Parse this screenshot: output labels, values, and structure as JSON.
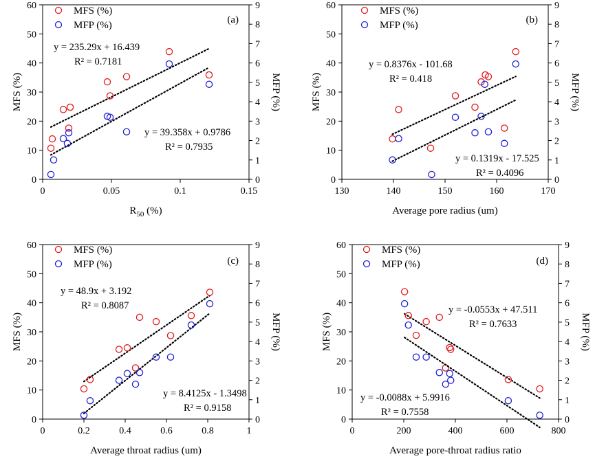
{
  "colors": {
    "mfs": "#e31a1c",
    "mfp": "#1f1fd6",
    "axis": "#000000",
    "trend": "#000000"
  },
  "chart_data": [
    {
      "type": "scatter",
      "tag": "(a)",
      "xlabel_main": "R",
      "xlabel_sub": "50",
      "xlabel_suffix": " (%)",
      "ylabel_left": "MFS (%)",
      "ylabel_right": "MFP (%)",
      "xlim": [
        0,
        0.15
      ],
      "xticks": [
        0,
        0.05,
        0.1,
        0.15
      ],
      "xtick_labels": [
        "0",
        "0.05",
        "0.1",
        "0.15"
      ],
      "ylim_left": [
        0,
        60
      ],
      "yticks_left": [
        0,
        10,
        20,
        30,
        40,
        50,
        60
      ],
      "ylim_right": [
        0,
        9
      ],
      "yticks_right": [
        0,
        1,
        2,
        3,
        4,
        5,
        6,
        7,
        8,
        9
      ],
      "legend": [
        "MFS (%)",
        "MFP (%)"
      ],
      "series": [
        {
          "name": "MFS (%)",
          "axis": "left",
          "x": [
            0.006,
            0.007,
            0.015,
            0.019,
            0.02,
            0.047,
            0.049,
            0.061,
            0.092,
            0.121
          ],
          "y": [
            10.7,
            13.9,
            24.0,
            17.6,
            24.8,
            33.5,
            28.7,
            35.3,
            43.9,
            35.9
          ],
          "equation": "y = 235.29x  + 16.439",
          "r2": "R² = 0.7181",
          "trend_x": [
            0.006,
            0.121
          ]
        },
        {
          "name": "MFP (%)",
          "axis": "right",
          "x": [
            0.006,
            0.008,
            0.015,
            0.018,
            0.019,
            0.047,
            0.049,
            0.061,
            0.092,
            0.121
          ],
          "y": [
            0.25,
            1.0,
            2.1,
            1.85,
            2.4,
            3.25,
            3.2,
            2.45,
            5.95,
            4.9
          ],
          "equation": "y = 39.358x  + 0.9786",
          "r2": "R² = 0.7935",
          "trend_x": [
            0.006,
            0.121
          ]
        }
      ]
    },
    {
      "type": "scatter",
      "tag": "(b)",
      "xlabel_main": "Average pore radius (um)",
      "xlabel_sub": "",
      "xlabel_suffix": "",
      "ylabel_left": "MFS (%)",
      "ylabel_right": "MFP (%)",
      "xlim": [
        130,
        170
      ],
      "xticks": [
        130,
        140,
        150,
        160,
        170
      ],
      "xtick_labels": [
        "130",
        "140",
        "150",
        "160",
        "170"
      ],
      "ylim_left": [
        0,
        60
      ],
      "yticks_left": [
        0,
        10,
        20,
        30,
        40,
        50,
        60
      ],
      "ylim_right": [
        0,
        9
      ],
      "yticks_right": [
        0,
        1,
        2,
        3,
        4,
        5,
        6,
        7,
        8,
        9
      ],
      "legend": [
        "MFS (%)",
        "MFP (%)"
      ],
      "series": [
        {
          "name": "MFS (%)",
          "axis": "left",
          "x": [
            139.8,
            141.0,
            147.2,
            152.0,
            155.8,
            157.0,
            157.8,
            158.4,
            161.5,
            163.7
          ],
          "y": [
            13.9,
            24.0,
            10.7,
            28.7,
            24.8,
            33.5,
            35.9,
            35.3,
            17.6,
            43.9
          ],
          "equation": "y = 0.8376x  - 101.68",
          "r2": "R² = 0.418",
          "trend_x": [
            139.8,
            163.7
          ]
        },
        {
          "name": "MFP (%)",
          "axis": "right",
          "x": [
            139.8,
            141.0,
            147.4,
            152.0,
            155.8,
            157.0,
            157.7,
            158.4,
            161.5,
            163.7
          ],
          "y": [
            1.0,
            2.1,
            0.25,
            3.2,
            2.4,
            3.25,
            4.9,
            2.45,
            1.85,
            5.95
          ],
          "equation": "y = 0.1319x  - 17.525",
          "r2": "R² = 0.4096",
          "trend_x": [
            139.8,
            163.7
          ]
        }
      ]
    },
    {
      "type": "scatter",
      "tag": "(c)",
      "xlabel_main": "Average throat radius (um)",
      "xlabel_sub": "",
      "xlabel_suffix": "",
      "ylabel_left": "MFS (%)",
      "ylabel_right": "MFP (%)",
      "xlim": [
        0,
        1
      ],
      "xticks": [
        0,
        0.2,
        0.4,
        0.6,
        0.8,
        1
      ],
      "xtick_labels": [
        "0",
        "0.2",
        "0.4",
        "0.6",
        "0.8",
        "1"
      ],
      "ylim_left": [
        0,
        60
      ],
      "yticks_left": [
        0,
        10,
        20,
        30,
        40,
        50,
        60
      ],
      "ylim_right": [
        0,
        9
      ],
      "yticks_right": [
        0,
        1,
        2,
        3,
        4,
        5,
        6,
        7,
        8,
        9
      ],
      "legend": [
        "MFS (%)",
        "MFP (%)"
      ],
      "series": [
        {
          "name": "MFS (%)",
          "axis": "left",
          "x": [
            0.2,
            0.23,
            0.37,
            0.41,
            0.45,
            0.47,
            0.55,
            0.62,
            0.72,
            0.81
          ],
          "y": [
            10.4,
            13.6,
            24.0,
            24.5,
            17.6,
            35.0,
            33.5,
            28.7,
            35.6,
            43.6
          ],
          "equation": "y = 48.9x  + 3.192",
          "r2": "R² = 0.8087",
          "trend_x": [
            0.2,
            0.81
          ]
        },
        {
          "name": "MFP (%)",
          "axis": "right",
          "x": [
            0.2,
            0.23,
            0.37,
            0.41,
            0.45,
            0.47,
            0.55,
            0.62,
            0.72,
            0.81
          ],
          "y": [
            0.2,
            0.95,
            2.0,
            2.35,
            1.8,
            2.4,
            3.2,
            3.2,
            4.85,
            5.95
          ],
          "equation": "y = 8.4125x  - 1.3498",
          "r2": "R² = 0.9158",
          "trend_x": [
            0.2,
            0.81
          ]
        }
      ]
    },
    {
      "type": "scatter",
      "tag": "(d)",
      "xlabel_main": "Average pore-throat radius ratio",
      "xlabel_sub": "",
      "xlabel_suffix": "",
      "ylabel_left": "MFS (%)",
      "ylabel_right": "MFP (%)",
      "xlim": [
        0,
        800
      ],
      "xticks": [
        0,
        200,
        400,
        600,
        800
      ],
      "xtick_labels": [
        "0",
        "200",
        "400",
        "600",
        "800"
      ],
      "ylim_left": [
        0,
        60
      ],
      "yticks_left": [
        0,
        10,
        20,
        30,
        40,
        50,
        60
      ],
      "ylim_right": [
        0,
        9
      ],
      "yticks_right": [
        0,
        1,
        2,
        3,
        4,
        5,
        6,
        7,
        8,
        9
      ],
      "legend": [
        "MFS (%)",
        "MFP (%)"
      ],
      "series": [
        {
          "name": "MFS (%)",
          "axis": "left",
          "x": [
            203,
            218,
            248,
            287,
            338,
            362,
            378,
            382,
            605,
            727
          ],
          "y": [
            43.8,
            35.6,
            28.8,
            33.5,
            35.0,
            17.6,
            24.6,
            24.0,
            13.6,
            10.4
          ],
          "equation": "y = -0.0553x  + 47.511",
          "r2": "R² = 0.7633",
          "trend_x": [
            203,
            727
          ]
        },
        {
          "name": "MFP (%)",
          "axis": "right",
          "x": [
            203,
            218,
            248,
            287,
            338,
            362,
            378,
            382,
            605,
            727
          ],
          "y": [
            5.95,
            4.85,
            3.2,
            3.2,
            2.4,
            1.8,
            2.35,
            2.0,
            0.95,
            0.2
          ],
          "equation": "y = -0.0088x  + 5.9916",
          "r2": "R² = 0.7558",
          "trend_x": [
            203,
            727
          ]
        }
      ]
    }
  ]
}
